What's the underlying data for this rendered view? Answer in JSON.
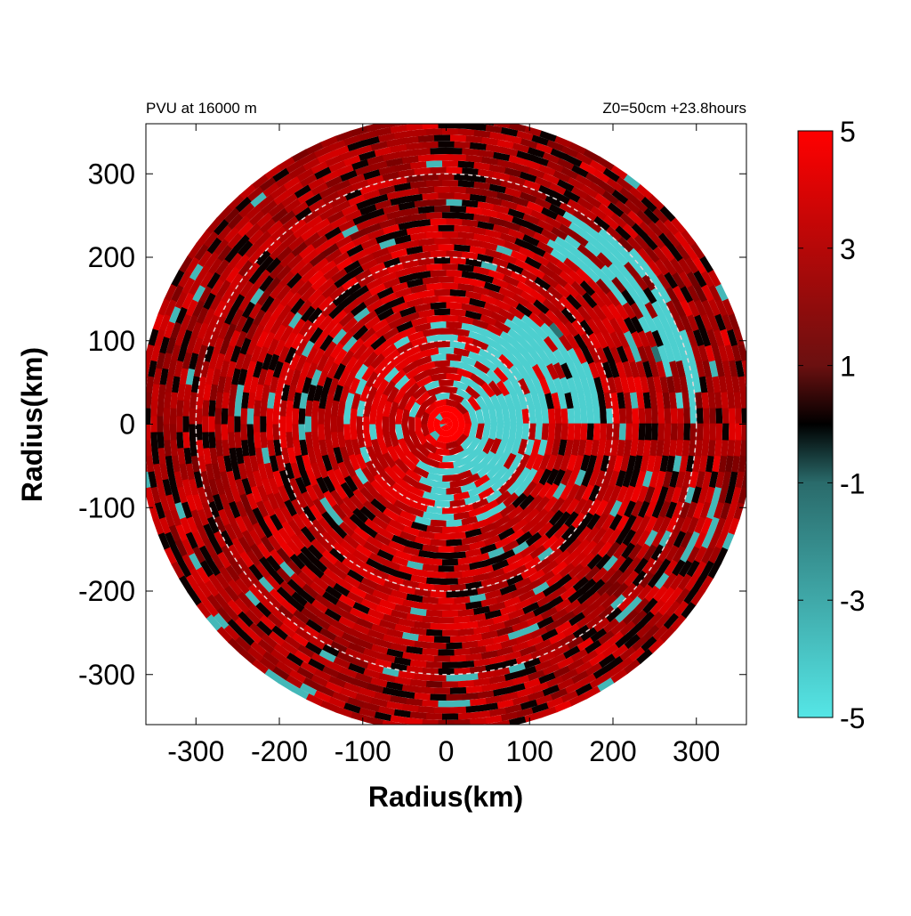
{
  "chart_data": {
    "type": "heatmap",
    "title_left": "PVU at 16000 m",
    "title_right": "Z0=50cm  +23.8hours",
    "xlabel": "Radius(km)",
    "ylabel": "Radius(km)",
    "xlim": [
      -360,
      360
    ],
    "ylim": [
      -360,
      360
    ],
    "xticks": [
      -300,
      -200,
      -100,
      0,
      100,
      200,
      300
    ],
    "yticks": [
      300,
      200,
      100,
      0,
      -100,
      -200,
      -300
    ],
    "domain_radius_km": 370,
    "reference_circles_km": [
      100,
      200,
      300
    ],
    "colorbar": {
      "min": -5,
      "max": 5,
      "ticks": [
        5,
        3,
        1,
        -1,
        -3,
        -5
      ],
      "colors": {
        "low": "#55e6e6",
        "mid": "#000000",
        "high": "#ff0000"
      }
    },
    "patterns": {
      "eye_cyan_ring_km": [
        30,
        120
      ],
      "cyan_arc_sector_deg": [
        -60,
        60
      ],
      "red_core_radius_km": 25
    }
  }
}
